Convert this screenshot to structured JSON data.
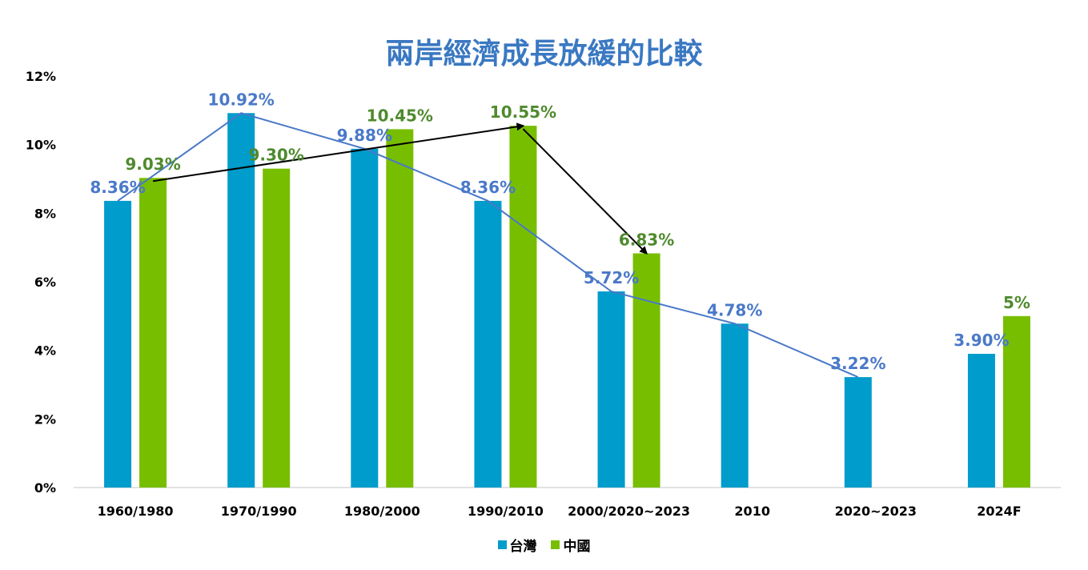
{
  "colors": {
    "taiwan": "#009ccc",
    "china": "#78be00",
    "taiwan_label": "#4a79c8",
    "china_label": "#4f8a2e",
    "arrow": "#000000",
    "axis": "#d9d9d9"
  },
  "chart_data": {
    "type": "bar",
    "title": "兩岸經濟成長放緩的比較",
    "categories": [
      "1960/1980",
      "1970/1990",
      "1980/2000",
      "1990/2010",
      "2000/2020~2023",
      "2010",
      "2020~2023",
      "2024F"
    ],
    "series": [
      {
        "name": "台灣",
        "values": [
          8.36,
          10.92,
          9.88,
          8.36,
          5.72,
          4.78,
          3.22,
          3.9
        ],
        "labels": [
          "8.36%",
          "10.92%",
          "9.88%",
          "8.36%",
          "5.72%",
          "4.78%",
          "3.22%",
          "3.90%"
        ]
      },
      {
        "name": "中國",
        "values": [
          9.03,
          9.3,
          10.45,
          10.55,
          6.83,
          null,
          null,
          5
        ],
        "labels": [
          "9.03%",
          "9.30%",
          "10.45%",
          "10.55%",
          "6.83%",
          "",
          "",
          "5%"
        ]
      }
    ],
    "overlay_lines": [
      {
        "series": "台灣",
        "style": "line",
        "categories_index": [
          0,
          1,
          2,
          3,
          4,
          5,
          6
        ]
      },
      {
        "series": "中國",
        "style": "arrows",
        "categories_index": [
          0,
          3,
          4
        ]
      }
    ],
    "yticks": [
      "0%",
      "2%",
      "4%",
      "6%",
      "8%",
      "10%",
      "12%"
    ],
    "ylim": [
      0,
      12
    ],
    "xlabel": "",
    "ylabel": "",
    "grid": false,
    "legend_position": "bottom"
  }
}
